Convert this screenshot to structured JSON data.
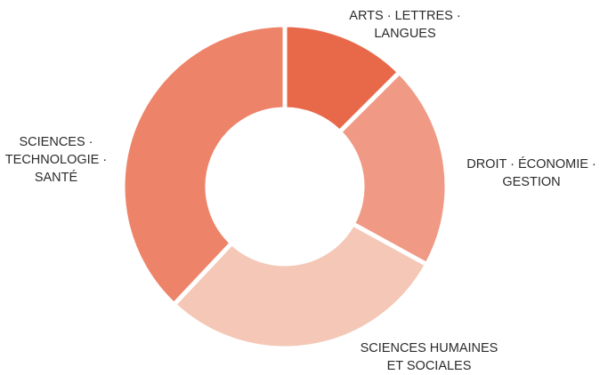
{
  "chart_data": {
    "type": "pie",
    "variant": "donut",
    "title": "",
    "slices": [
      {
        "label_lines": [
          "ARTS · LETTRES ·",
          "LANGUES"
        ],
        "value": 12.5,
        "color": "#e8694a"
      },
      {
        "label_lines": [
          "DROIT · ÉCONOMIE ·",
          "GESTION"
        ],
        "value": 20.5,
        "color": "#f09a85"
      },
      {
        "label_lines": [
          "SCIENCES HUMAINES",
          "ET SOCIALES"
        ],
        "value": 29,
        "color": "#f4c7b6"
      },
      {
        "label_lines": [
          "SCIENCES ·",
          "TECHNOLOGIE ·",
          "SANTÉ"
        ],
        "value": 38,
        "color": "#ed846a"
      }
    ],
    "legend": "none",
    "labels_placement": "outside"
  }
}
